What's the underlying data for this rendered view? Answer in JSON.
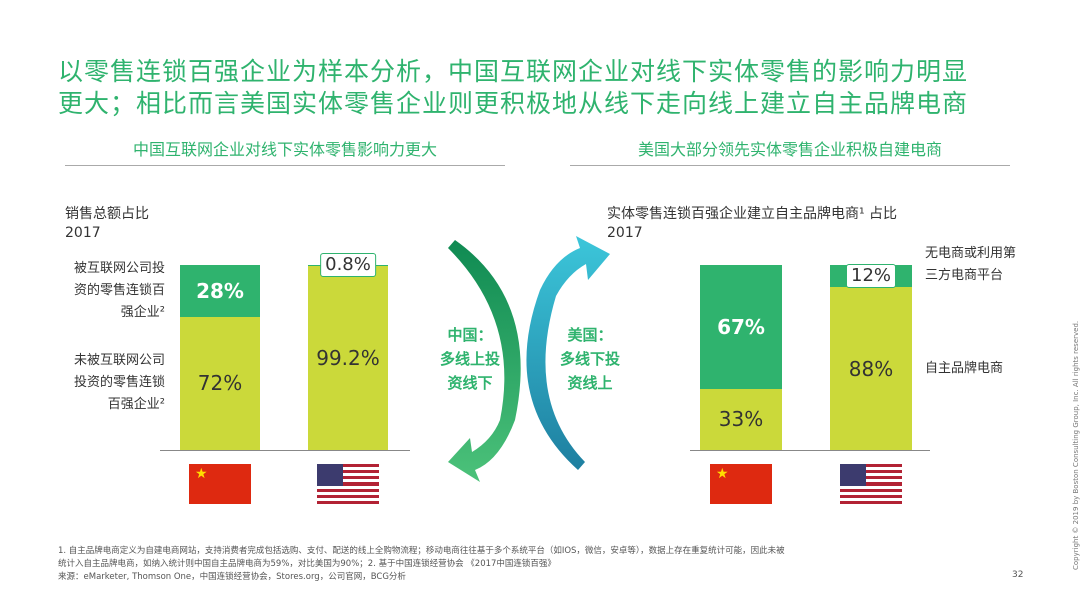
{
  "title": [
    "以零售连锁百强企业为样本分析，中国互联网企业对线下实体零售的影响力明显",
    "更大；相比而言美国实体零售企业则更积极地从线下走向线上建立自主品牌电商"
  ],
  "chart_data": [
    {
      "type": "bar",
      "stacked": true,
      "title": "中国互联网企业对线下实体零售影响力更大",
      "subtitle": "销售总额占比",
      "year": "2017",
      "categories": [
        null,
        null
      ],
      "ylim": [
        0,
        100
      ],
      "series": [
        {
          "name": "未被互联网公司投资的零售连锁百强企业²",
          "color": "#cbd93a",
          "values": [
            72,
            99.2
          ],
          "value_labels": [
            "72%",
            "99.2%"
          ]
        },
        {
          "name": "被互联网公司投资的零售连锁百强企业²",
          "color": "#2fb36e",
          "values": [
            28,
            0.8
          ],
          "value_labels": [
            "28%",
            "0.8%"
          ]
        }
      ]
    },
    {
      "type": "bar",
      "stacked": true,
      "title": "美国大部分领先实体零售企业积极自建电商",
      "subtitle": "实体零售连锁百强企业建立自主品牌电商¹  占比",
      "year": "2017",
      "categories": [
        null,
        null
      ],
      "ylim": [
        0,
        100
      ],
      "series": [
        {
          "name": "自主品牌电商",
          "color": "#cbd93a",
          "values": [
            33,
            88
          ],
          "value_labels": [
            "33%",
            "88%"
          ]
        },
        {
          "name": "无电商或利用第三方电商平台",
          "color": "#2fb36e",
          "values": [
            67,
            12
          ],
          "value_labels": [
            "67%",
            "12%"
          ]
        }
      ]
    }
  ],
  "arrows": [
    {
      "lines": [
        "中国：",
        "多线上投",
        "资线下"
      ]
    },
    {
      "lines": [
        "美国：",
        "多线下投",
        "资线上"
      ]
    }
  ],
  "footnotes": [
    "1. 自主品牌电商定义为自建电商网站，支持消费者完成包括选购、支付、配送的线上全购物流程；移动电商往往基于多个系统平台（如IOS，微信，安卓等），数据上存在重复统计可能，因此未被",
    "统计入自主品牌电商，如纳入统计则中国自主品牌电商为59%，对比美国为90%；2.  基于中国连锁经营协会 《2017中国连锁百强》",
    "来源：eMarketer, Thomson One，中国连锁经营协会，Stores.org，公司官网，BCG分析"
  ],
  "copyright": "Copyright © 2019 by Boston Consulting Group, Inc. All rights reserved.",
  "page_number": "32"
}
